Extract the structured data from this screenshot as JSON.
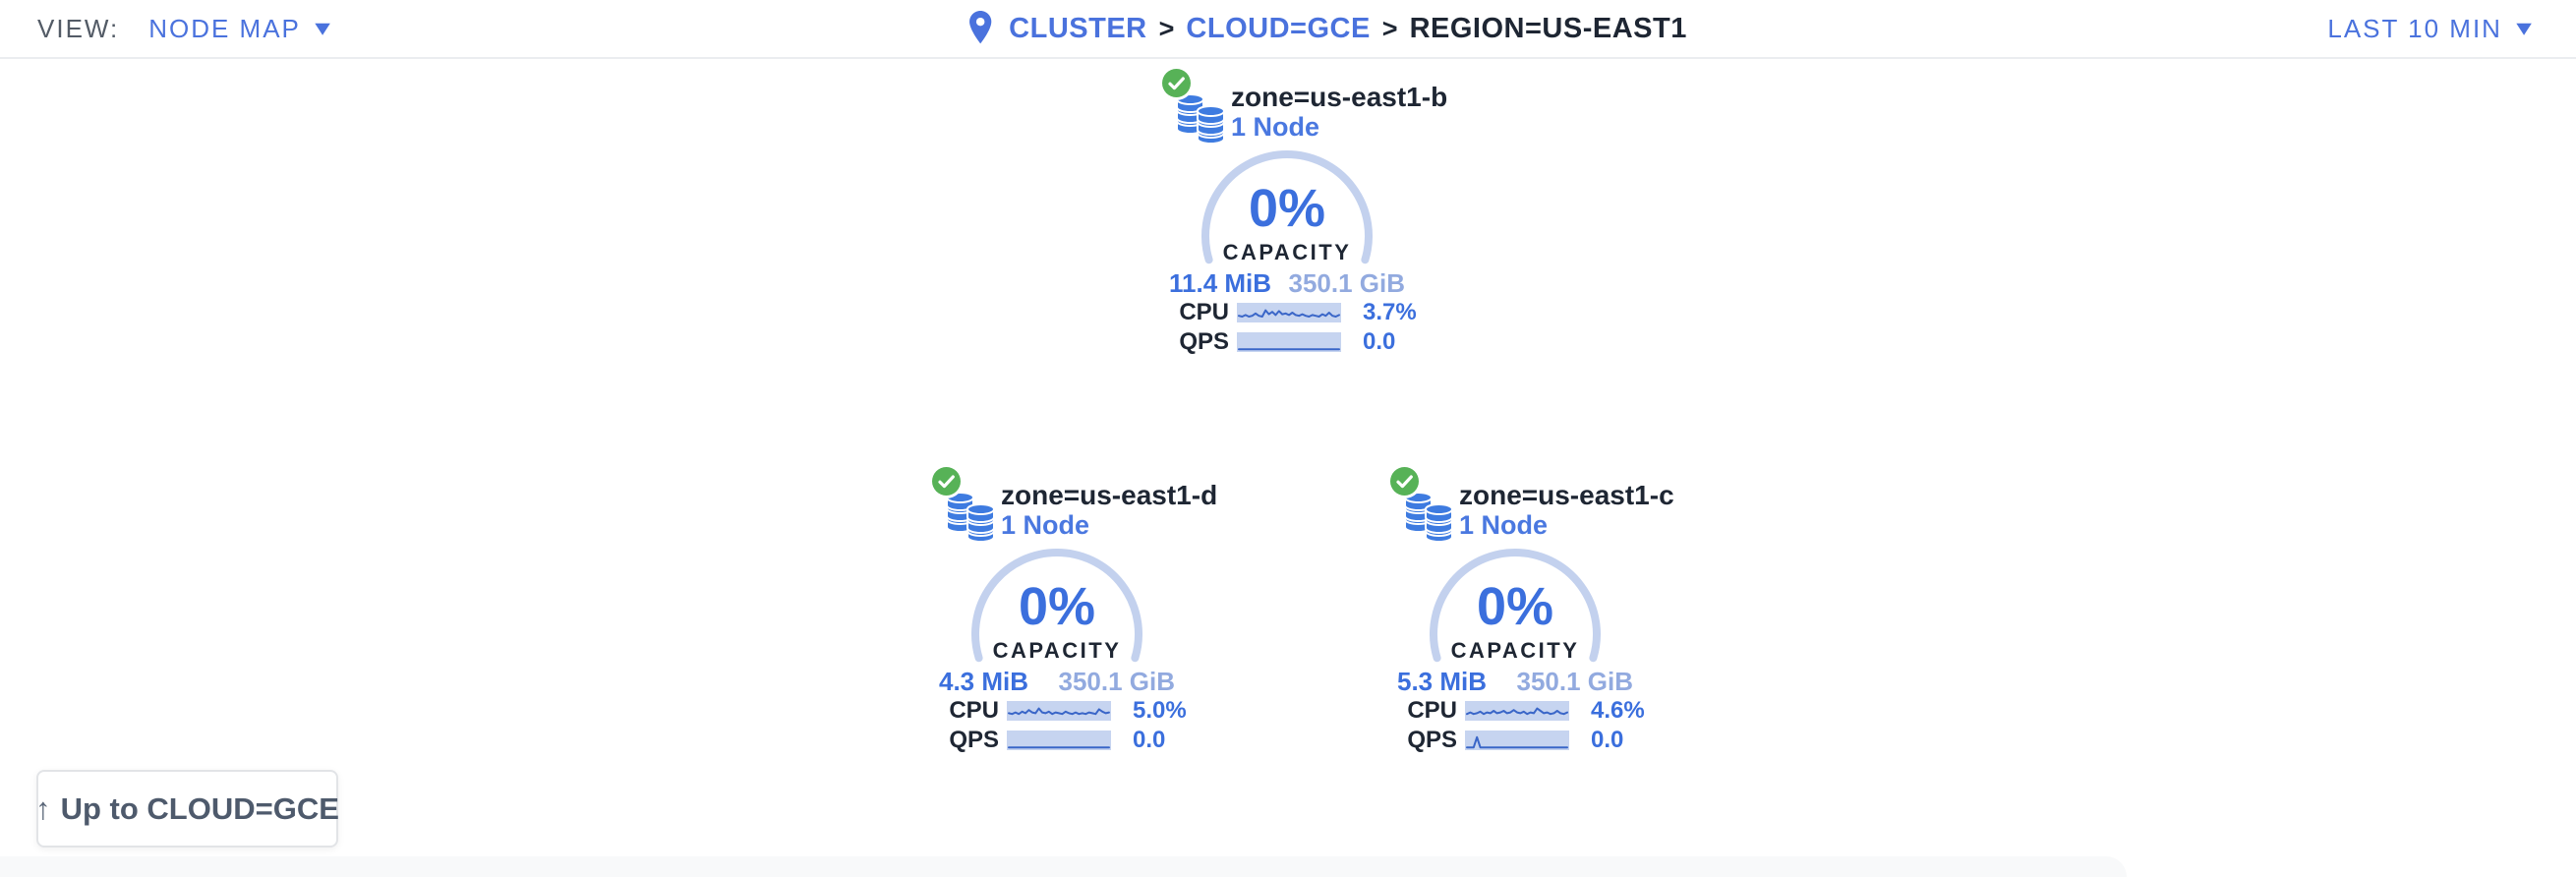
{
  "header": {
    "view_label": "VIEW:",
    "view_value": "NODE MAP",
    "breadcrumb": {
      "separator": ">",
      "items": [
        {
          "label": "CLUSTER"
        },
        {
          "label": "CLOUD=GCE"
        },
        {
          "label": "REGION=US-EAST1"
        }
      ]
    },
    "time_window": "LAST 10 MIN"
  },
  "zones": [
    {
      "name": "zone=us-east1-b",
      "node_count": "1 Node",
      "capacity_percent": "0%",
      "capacity_label": "CAPACITY",
      "capacity_used": "11.4 MiB",
      "capacity_total": "350.1 GiB",
      "cpu_label": "CPU",
      "cpu_value": "3.7%",
      "qps_label": "QPS",
      "qps_value": "0.0",
      "cpu_sparkline": [
        6,
        5,
        7,
        5,
        6,
        9,
        6,
        5,
        13,
        8,
        11,
        7,
        12,
        8,
        9,
        7,
        10,
        7,
        6,
        8,
        6,
        5,
        7,
        6,
        5,
        8,
        6,
        10,
        6,
        5,
        7
      ],
      "qps_sparkline": [
        1,
        1,
        1,
        1,
        1,
        1,
        1,
        1,
        1,
        1,
        1,
        1,
        1,
        1,
        1,
        1,
        1,
        1,
        1,
        1,
        1,
        1,
        1,
        1,
        1,
        1,
        1,
        1,
        1,
        1,
        1
      ]
    },
    {
      "name": "zone=us-east1-d",
      "node_count": "1 Node",
      "capacity_percent": "0%",
      "capacity_label": "CAPACITY",
      "capacity_used": "4.3 MiB",
      "capacity_total": "350.1 GiB",
      "cpu_label": "CPU",
      "cpu_value": "5.0%",
      "qps_label": "QPS",
      "qps_value": "0.0",
      "cpu_sparkline": [
        7,
        6,
        8,
        6,
        9,
        7,
        11,
        8,
        7,
        13,
        8,
        7,
        9,
        6,
        8,
        7,
        6,
        9,
        7,
        6,
        8,
        6,
        7,
        6,
        8,
        7,
        6,
        12,
        9,
        7,
        8
      ],
      "qps_sparkline": [
        1,
        1,
        1,
        1,
        1,
        1,
        1,
        1,
        1,
        1,
        1,
        1,
        1,
        1,
        1,
        1,
        1,
        1,
        1,
        1,
        1,
        1,
        1,
        1,
        1,
        1,
        1,
        1,
        1,
        1,
        1
      ]
    },
    {
      "name": "zone=us-east1-c",
      "node_count": "1 Node",
      "capacity_percent": "0%",
      "capacity_label": "CAPACITY",
      "capacity_used": "5.3 MiB",
      "capacity_total": "350.1 GiB",
      "cpu_label": "CPU",
      "cpu_value": "4.6%",
      "qps_label": "QPS",
      "qps_value": "0.0",
      "cpu_sparkline": [
        6,
        8,
        6,
        7,
        9,
        6,
        8,
        7,
        10,
        7,
        8,
        10,
        7,
        8,
        11,
        8,
        7,
        9,
        6,
        8,
        7,
        13,
        10,
        7,
        8,
        6,
        7,
        10,
        7,
        6,
        8
      ],
      "qps_sparkline": [
        1,
        1,
        1,
        14,
        1,
        1,
        1,
        1,
        1,
        1,
        1,
        1,
        1,
        1,
        1,
        1,
        1,
        1,
        1,
        1,
        1,
        1,
        1,
        1,
        1,
        1,
        1,
        1,
        1,
        1,
        1
      ]
    }
  ],
  "up_button": {
    "label": "Up to CLOUD=GCE"
  },
  "icons": {
    "up_arrow": "↑",
    "caret_down": "▾"
  },
  "colors": {
    "accent_blue": "#4a72dd",
    "node_blue": "#4a78e0",
    "value_blue": "#3b6fdd",
    "light_blue_total": "#92aadf",
    "arc_blue": "#c3d1ee",
    "spark_bg": "#c6d4f0",
    "spark_line": "#3a66c8",
    "healthy_green": "#57b257",
    "icon_blue": "#3e7be0",
    "dark_text": "#1e2633",
    "gray_text": "#535b66",
    "border_gray": "#ebedf0"
  }
}
